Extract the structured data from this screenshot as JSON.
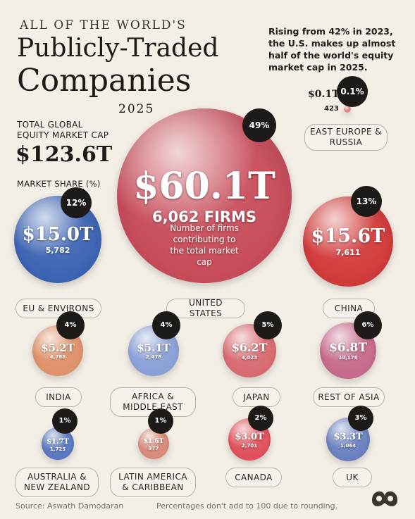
{
  "header": {
    "title_small": "ALL OF THE WORLD'S",
    "title_line1": "Publicly-Traded",
    "title_line2": "Companies",
    "year": "2025",
    "subtitle": "Rising from 42% in 2023, the U.S. makes up almost half of the world's equity market cap in 2025."
  },
  "summary": {
    "total_label_line1": "TOTAL GLOBAL",
    "total_label_line2": "EQUITY MARKET CAP",
    "total_value": "$123.6T",
    "share_label": "MARKET SHARE (%)"
  },
  "callout": "Number of firms contributing to the total market cap",
  "chart_data": {
    "type": "bubble",
    "title": "All of the World's Publicly-Traded Companies 2025",
    "unit": "USD trillions",
    "total_market_cap": 123.6,
    "regions": [
      {
        "name": "UNITED STATES",
        "market_cap": "$60.1T",
        "value": 60.1,
        "firms": "6,062 FIRMS",
        "share": "49%",
        "color": "#c84c5a"
      },
      {
        "name": "EU & ENVIRONS",
        "market_cap": "$15.0T",
        "value": 15.0,
        "firms": "5,782",
        "share": "12%",
        "color": "#3c64b4"
      },
      {
        "name": "CHINA",
        "market_cap": "$15.6T",
        "value": 15.6,
        "firms": "7,611",
        "share": "13%",
        "color": "#d23a3a"
      },
      {
        "name": "EAST EUROPE & RUSSIA",
        "market_cap": "$0.1T",
        "value": 0.1,
        "firms": "423",
        "share": "0.1%",
        "color": "#e08585"
      },
      {
        "name": "INDIA",
        "market_cap": "$5.2T",
        "value": 5.2,
        "firms": "4,788",
        "share": "4%",
        "color": "#e0926a"
      },
      {
        "name": "AFRICA & MIDDLE EAST",
        "market_cap": "$5.1T",
        "value": 5.1,
        "firms": "2,478",
        "share": "4%",
        "color": "#8aa0d8"
      },
      {
        "name": "JAPAN",
        "market_cap": "$6.2T",
        "value": 6.2,
        "firms": "4,023",
        "share": "5%",
        "color": "#d96a72"
      },
      {
        "name": "REST OF ASIA",
        "market_cap": "$6.8T",
        "value": 6.8,
        "firms": "10,176",
        "share": "6%",
        "color": "#c76a8e"
      },
      {
        "name": "AUSTRALIA & NEW ZEALAND",
        "market_cap": "$1.7T",
        "value": 1.7,
        "firms": "1,725",
        "share": "1%",
        "color": "#5a78c0"
      },
      {
        "name": "LATIN AMERICA & CARIBBEAN",
        "market_cap": "$1.6T",
        "value": 1.6,
        "firms": "977",
        "share": "1%",
        "color": "#d88a7a"
      },
      {
        "name": "CANADA",
        "market_cap": "$3.0T",
        "value": 3.0,
        "firms": "2,701",
        "share": "2%",
        "color": "#e0505a"
      },
      {
        "name": "UK",
        "market_cap": "$3.3T",
        "value": 3.3,
        "firms": "1,064",
        "share": "3%",
        "color": "#6a80c0"
      }
    ]
  },
  "footer": {
    "source": "Source: Aswath Damodaran",
    "note": "Percentages don't add to 100 due to rounding."
  }
}
